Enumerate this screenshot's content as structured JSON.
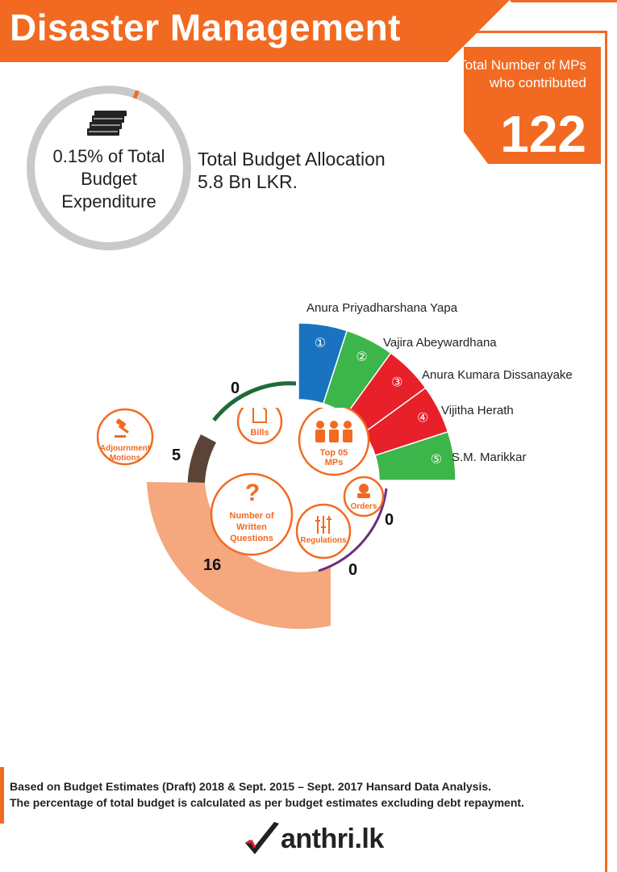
{
  "header": {
    "title": "Disaster Management"
  },
  "mps": {
    "label": "Total Number of MPs who contributed",
    "count": "122"
  },
  "budget": {
    "ring_text": "0.15% of Total Budget Expenditure",
    "percent": 0.15,
    "allocation_label": "Total Budget Allocation",
    "allocation_value": "5.8 Bn LKR.",
    "icon": "money-stack-icon"
  },
  "top_mps": [
    {
      "rank": "①",
      "name": "Anura Priyadharshana Yapa",
      "color": "#1a73c0"
    },
    {
      "rank": "②",
      "name": "Vajira Abeywardhana",
      "color": "#3cb54a"
    },
    {
      "rank": "③",
      "name": "Anura Kumara Dissanayake",
      "color": "#e8202a"
    },
    {
      "rank": "④",
      "name": "Vijitha Herath",
      "color": "#e8202a"
    },
    {
      "rank": "⑤",
      "name": "S.M. Marikkar",
      "color": "#3cb54a"
    }
  ],
  "categories": {
    "bills": {
      "label": "Bills",
      "count": "0",
      "icon": "document-icon",
      "color": "#1e6b3a"
    },
    "adjournment": {
      "label": "Adjournment Motions",
      "count": "5",
      "icon": "gavel-icon",
      "color": "#5a4438"
    },
    "written_questions": {
      "label": "Number of Written Questions",
      "count": "16",
      "icon": "question-mark-icon",
      "color": "#f5a77e"
    },
    "regulations": {
      "label": "Regulations",
      "count": "0",
      "icon": "sliders-icon",
      "color": "#6b2d7a"
    },
    "orders": {
      "label": "Orders",
      "count": "0",
      "icon": "person-icon",
      "color": "#6b2d7a"
    },
    "top_mps": {
      "label": "Top 05 MPs",
      "icon": "people-icon"
    }
  },
  "footer": {
    "line1": "Based on Budget Estimates (Draft) 2018 & Sept. 2015 – Sept. 2017 Hansard Data Analysis.",
    "line2": "The percentage of  total budget is calculated as per budget estimates excluding debt repayment.",
    "logo_text": "anthri.lk",
    "logo_icon": "check-m-logo-icon"
  },
  "colors": {
    "accent": "#f26a21"
  }
}
